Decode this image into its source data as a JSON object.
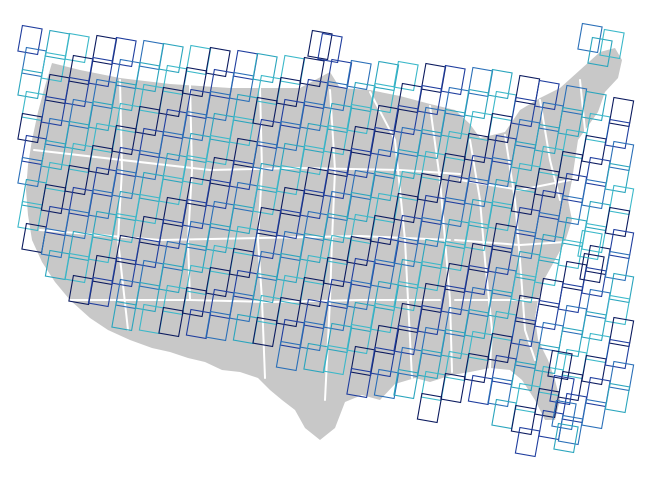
{
  "map": {
    "region": "contiguous-united-states",
    "state_boundaries": true,
    "colors": {
      "land": "#c8c8c8",
      "state_border": "#ffffff",
      "background": "#ffffff",
      "footprint_palette": [
        "#0b1a5e",
        "#1f3d9e",
        "#2a6fb8",
        "#2aa5bd",
        "#3bb8c9"
      ]
    },
    "overlay": {
      "type": "satellite-scene-footprints",
      "shape": "tilted-rectangle",
      "fill": "none"
    }
  }
}
